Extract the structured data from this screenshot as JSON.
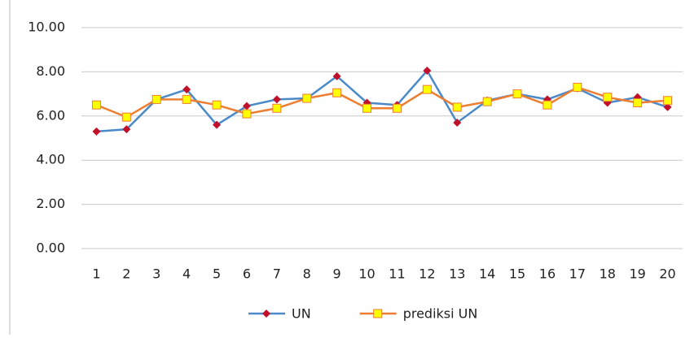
{
  "chart_data": {
    "type": "line",
    "categories": [
      "1",
      "2",
      "3",
      "4",
      "5",
      "6",
      "7",
      "8",
      "9",
      "10",
      "11",
      "12",
      "13",
      "14",
      "15",
      "16",
      "17",
      "18",
      "19",
      "20"
    ],
    "series": [
      {
        "name": "UN",
        "color": "#4a8ac9",
        "marker": "diamond",
        "marker_color": "#c0102a",
        "values": [
          5.3,
          5.4,
          6.75,
          7.2,
          5.6,
          6.45,
          6.75,
          6.8,
          7.8,
          6.6,
          6.5,
          8.05,
          5.7,
          6.7,
          7.0,
          6.75,
          7.25,
          6.6,
          6.85,
          6.4
        ]
      },
      {
        "name": "prediksi UN",
        "color": "#ed7d31",
        "marker": "square",
        "marker_color": "#ffff00",
        "values": [
          6.5,
          5.95,
          6.75,
          6.75,
          6.5,
          6.1,
          6.35,
          6.8,
          7.05,
          6.35,
          6.35,
          7.2,
          6.4,
          6.65,
          7.0,
          6.5,
          7.3,
          6.85,
          6.6,
          6.7
        ]
      }
    ],
    "ylim": [
      0,
      10
    ],
    "yticks": [
      {
        "value": 0,
        "label": "0.00"
      },
      {
        "value": 2,
        "label": "2.00"
      },
      {
        "value": 4,
        "label": "4.00"
      },
      {
        "value": 6,
        "label": "6.00"
      },
      {
        "value": 8,
        "label": "8.00"
      },
      {
        "value": 10,
        "label": "10.00"
      }
    ],
    "grid": true,
    "legend": "bottom"
  }
}
